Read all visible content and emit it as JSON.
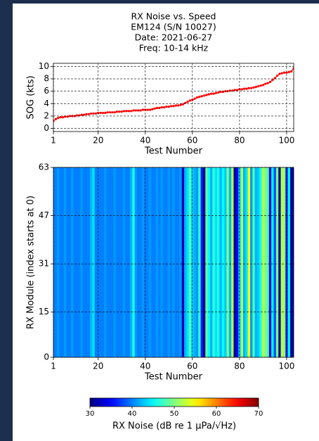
{
  "chart_data": [
    {
      "type": "line",
      "title": [
        "RX Noise vs. Speed",
        "EM124 (S/N 10027)",
        "Date: 2021-06-27",
        "Freq: 10-14 kHz"
      ],
      "x_label": "Test Number",
      "y_label": "SOG (kts)",
      "x": [
        1,
        2,
        3,
        4,
        5,
        6,
        7,
        8,
        9,
        10,
        11,
        12,
        13,
        14,
        15,
        16,
        17,
        18,
        19,
        20,
        21,
        22,
        23,
        24,
        25,
        26,
        27,
        28,
        29,
        30,
        31,
        32,
        33,
        34,
        35,
        36,
        37,
        38,
        39,
        40,
        41,
        42,
        43,
        44,
        45,
        46,
        47,
        48,
        49,
        50,
        51,
        52,
        53,
        54,
        55,
        56,
        57,
        58,
        59,
        60,
        61,
        62,
        63,
        64,
        65,
        66,
        67,
        68,
        69,
        70,
        71,
        72,
        73,
        74,
        75,
        76,
        77,
        78,
        79,
        80,
        81,
        82,
        83,
        84,
        85,
        86,
        87,
        88,
        89,
        90,
        91,
        92,
        93,
        94,
        95,
        96,
        97,
        98,
        99,
        100,
        101,
        102,
        103
      ],
      "series": [
        {
          "color": "#ff0000",
          "values": [
            1.2,
            1.5,
            1.7,
            1.8,
            1.8,
            1.9,
            1.9,
            2.0,
            2.0,
            2.0,
            2.1,
            2.1,
            2.2,
            2.2,
            2.3,
            2.3,
            2.4,
            2.4,
            2.4,
            2.5,
            2.5,
            2.5,
            2.5,
            2.6,
            2.6,
            2.6,
            2.6,
            2.7,
            2.7,
            2.7,
            2.8,
            2.8,
            2.8,
            2.8,
            2.9,
            2.9,
            2.9,
            2.9,
            3.0,
            3.0,
            3.0,
            3.0,
            3.1,
            3.2,
            3.3,
            3.3,
            3.4,
            3.4,
            3.5,
            3.5,
            3.6,
            3.6,
            3.7,
            3.7,
            3.8,
            3.9,
            4.1,
            4.3,
            4.5,
            4.6,
            4.8,
            5.0,
            5.1,
            5.2,
            5.3,
            5.4,
            5.5,
            5.6,
            5.6,
            5.7,
            5.8,
            5.9,
            5.9,
            6.0,
            6.0,
            6.1,
            6.1,
            6.2,
            6.2,
            6.3,
            6.3,
            6.4,
            6.4,
            6.5,
            6.5,
            6.6,
            6.7,
            6.8,
            6.9,
            7.0,
            7.2,
            7.3,
            7.5,
            7.8,
            8.1,
            8.5,
            8.8,
            8.9,
            9.0,
            9.0,
            9.1,
            9.2,
            9.7
          ]
        }
      ],
      "xlim": [
        1,
        103
      ],
      "xticks": [
        1,
        20,
        40,
        60,
        80,
        100
      ],
      "ylim": [
        -0.5,
        10.5
      ],
      "yticks": [
        0,
        2,
        4,
        6,
        8,
        10
      ],
      "grid": true
    },
    {
      "type": "heatmap",
      "x_label": "Test Number",
      "y_label": "RX Module (index starts at 0)",
      "x": [
        1,
        2,
        3,
        4,
        5,
        6,
        7,
        8,
        9,
        10,
        11,
        12,
        13,
        14,
        15,
        16,
        17,
        18,
        19,
        20,
        21,
        22,
        23,
        24,
        25,
        26,
        27,
        28,
        29,
        30,
        31,
        32,
        33,
        34,
        35,
        36,
        37,
        38,
        39,
        40,
        41,
        42,
        43,
        44,
        45,
        46,
        47,
        48,
        49,
        50,
        51,
        52,
        53,
        54,
        55,
        56,
        57,
        58,
        59,
        60,
        61,
        62,
        63,
        64,
        65,
        66,
        67,
        68,
        69,
        70,
        71,
        72,
        73,
        74,
        75,
        76,
        77,
        78,
        79,
        80,
        81,
        82,
        83,
        84,
        85,
        86,
        87,
        88,
        89,
        90,
        91,
        92,
        93,
        94,
        95,
        96,
        97,
        98,
        99,
        100,
        101,
        102,
        103
      ],
      "values": [
        40,
        40,
        41,
        40,
        40,
        41,
        40,
        40,
        41,
        40,
        40,
        40,
        41,
        40,
        40,
        40,
        42,
        44,
        40,
        40,
        40,
        40,
        41,
        40,
        40,
        40,
        41,
        40,
        40,
        40,
        41,
        40,
        40,
        42,
        46,
        41,
        40,
        40,
        41,
        40,
        40,
        41,
        40,
        40,
        41,
        40,
        41,
        40,
        40,
        41,
        40,
        41,
        40,
        40,
        41,
        32,
        42,
        44,
        48,
        43,
        42,
        41,
        47,
        36,
        31,
        49,
        45,
        42,
        47,
        44,
        46,
        42,
        45,
        43,
        50,
        42,
        52,
        31,
        35,
        43,
        52,
        42,
        44,
        55,
        41,
        48,
        42,
        43,
        46,
        52,
        50,
        48,
        33,
        45,
        38,
        50,
        31,
        52,
        51,
        36,
        45,
        32,
        30
      ],
      "xlim": [
        1,
        103
      ],
      "xticks": [
        1,
        20,
        40,
        60,
        80,
        100
      ],
      "ylim": [
        0,
        63
      ],
      "yticks": [
        0,
        15,
        31,
        47,
        63
      ],
      "grid": true,
      "colormap": "jet",
      "clim": [
        30,
        70
      ]
    },
    {
      "type": "colorbar",
      "label": "RX Noise (dB re 1 μPa/√Hz)",
      "colormap": "jet",
      "clim": [
        30,
        70
      ],
      "ticks": [
        30,
        40,
        50,
        60,
        70
      ]
    }
  ]
}
